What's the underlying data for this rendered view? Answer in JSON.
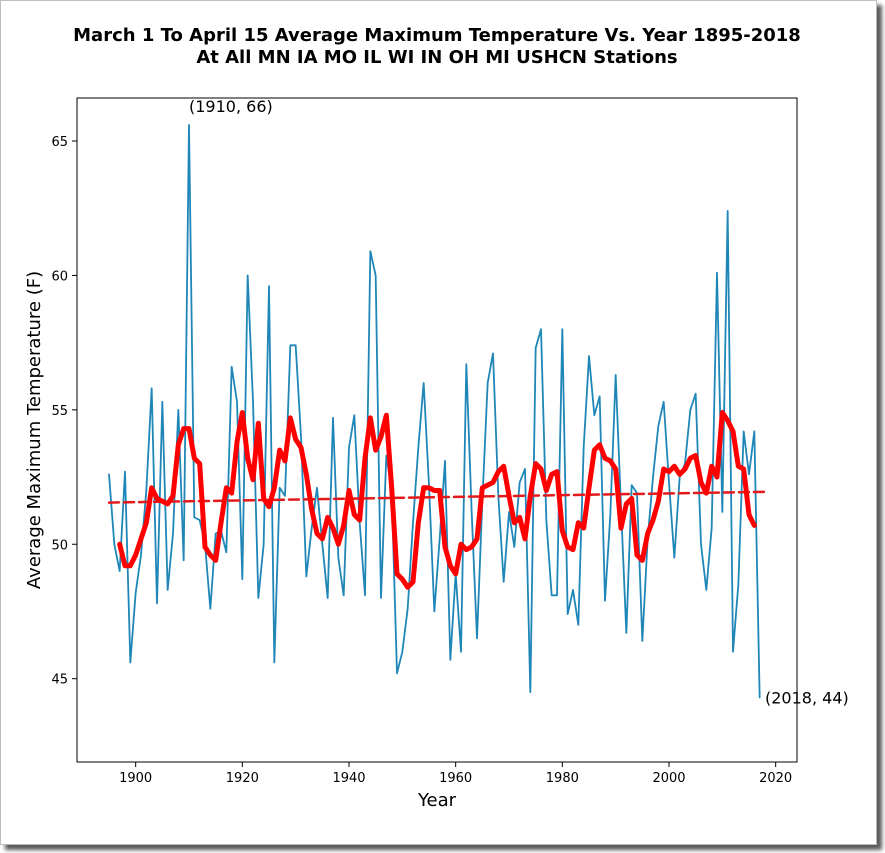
{
  "chart_data": {
    "type": "line",
    "title_line1": "March 1 To April 15 Average Maximum Temperature Vs. Year 1895-2018",
    "title_line2": "At All MN IA MO IL WI IN OH MI USHCN Stations",
    "xlabel": "Year",
    "ylabel": "Average Maximum Temperature (F)",
    "xlim": [
      1889,
      2024
    ],
    "ylim": [
      41.9,
      66.6
    ],
    "x_ticks": [
      1900,
      1920,
      1940,
      1960,
      1980,
      2000,
      2020
    ],
    "y_ticks": [
      45,
      50,
      55,
      60,
      65
    ],
    "grid": false,
    "colors": {
      "annual": "#1f86b8",
      "smoothed": "#ff0000",
      "trend": "#e31a1c"
    },
    "annotations": [
      {
        "text": "(1910, 66)",
        "x": 1910,
        "y": 66
      },
      {
        "text": "(2018, 44)",
        "x": 2018,
        "y": 44
      }
    ],
    "series": [
      {
        "x_start": 1895,
        "values": [
          52.6,
          50.0,
          49.0,
          52.7,
          45.6,
          48.2,
          49.6,
          52.0,
          55.8,
          47.8,
          55.3,
          48.3,
          50.4,
          55.0,
          49.4,
          65.6,
          51.0,
          50.9,
          50.0,
          47.6,
          50.4,
          50.5,
          49.7,
          56.6,
          55.3,
          48.7,
          60.0,
          55.3,
          48.0,
          50.0,
          59.6,
          45.6,
          52.1,
          51.8,
          57.4,
          57.4,
          54.0,
          48.8,
          50.6,
          52.1,
          50.0,
          48.0,
          54.7,
          49.5,
          48.1,
          53.6,
          54.8,
          50.8,
          48.1,
          60.9,
          60.0,
          48.0,
          53.3,
          52.0,
          45.2,
          46.0,
          47.6,
          50.8,
          53.6,
          56.0,
          52.2,
          47.5,
          50.2,
          53.1,
          45.7,
          48.9,
          46.0,
          56.7,
          51.2,
          46.5,
          51.6,
          56.0,
          57.1,
          51.8,
          48.6,
          51.2,
          49.9,
          52.3,
          52.8,
          44.5,
          57.3,
          58.0,
          50.9,
          48.1,
          48.1,
          58.0,
          47.4,
          48.3,
          47.0,
          53.6,
          57.0,
          54.8,
          55.5,
          47.9,
          51.1,
          56.3,
          51.4,
          46.7,
          52.2,
          51.9,
          46.4,
          50.2,
          52.5,
          54.4,
          55.3,
          52.3,
          49.5,
          52.5,
          53.0,
          55.0,
          55.6,
          50.0,
          48.3,
          50.6,
          60.1,
          51.2,
          62.4,
          46.0,
          48.5,
          54.2,
          52.6,
          54.2,
          44.3
        ]
      },
      {
        "x_start": 1897,
        "values": [
          50.0,
          49.2,
          49.2,
          49.6,
          50.2,
          50.8,
          52.1,
          51.7,
          51.6,
          51.5,
          51.8,
          53.7,
          54.3,
          54.3,
          53.2,
          53.0,
          49.9,
          49.6,
          49.4,
          50.8,
          52.1,
          51.9,
          53.8,
          54.9,
          53.2,
          52.4,
          54.5,
          51.7,
          51.4,
          52.1,
          53.5,
          53.1,
          54.7,
          53.9,
          53.6,
          52.6,
          51.3,
          50.4,
          50.2,
          51.0,
          50.6,
          50.0,
          50.7,
          52.0,
          51.1,
          50.9,
          53.2,
          54.7,
          53.5,
          54.0,
          54.8,
          52.1,
          48.9,
          48.7,
          48.4,
          48.6,
          50.8,
          52.1,
          52.1,
          52.0,
          52.0,
          49.9,
          49.2,
          48.9,
          50.0,
          49.8,
          49.9,
          50.2,
          52.1,
          52.2,
          52.3,
          52.7,
          52.9,
          51.8,
          50.8,
          51.0,
          50.2,
          51.8,
          53.0,
          52.8,
          52.0,
          52.6,
          52.7,
          50.5,
          49.9,
          49.8,
          50.8,
          50.6,
          52.1,
          53.5,
          53.7,
          53.2,
          53.1,
          52.8,
          50.6,
          51.5,
          51.7,
          49.6,
          49.4,
          50.4,
          50.9,
          51.6,
          52.8,
          52.7,
          52.9,
          52.6,
          52.8,
          53.2,
          53.3,
          52.3,
          51.9,
          52.9,
          52.5,
          54.9,
          54.6,
          54.2,
          52.9,
          52.8,
          51.1,
          50.7
        ]
      },
      {
        "x": [
          1895,
          2018
        ],
        "values": [
          51.55,
          51.95
        ]
      }
    ]
  }
}
